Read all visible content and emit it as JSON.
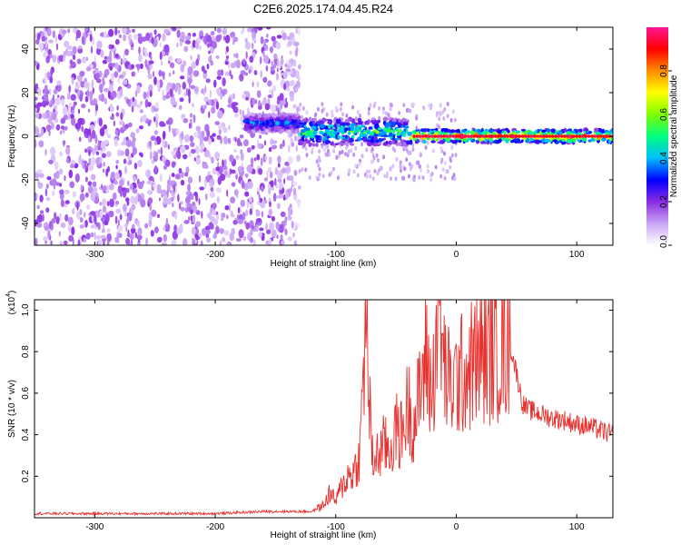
{
  "chart_data": [
    {
      "type": "heatmap",
      "title": "C2E6.2025.174.04.45.R24",
      "xlabel": "Height of straight line (km)",
      "ylabel": "Frequency (Hz)",
      "xlim": [
        -350,
        130
      ],
      "ylim": [
        -50,
        50
      ],
      "xticks": [
        -300,
        -200,
        -100,
        0,
        100
      ],
      "yticks": [
        -40,
        -20,
        0,
        20,
        40
      ],
      "grid": false,
      "colorbar": {
        "label": "Normalized spectral amplitude",
        "range": [
          0.0,
          1.0
        ],
        "ticks": [
          0.0,
          0.2,
          0.4,
          0.6,
          0.8
        ],
        "colors": [
          "#ffffff",
          "#c9a4f5",
          "#8a2be2",
          "#0000ff",
          "#00bfff",
          "#00ff7f",
          "#7fff00",
          "#ffff00",
          "#ff8c00",
          "#ff0000",
          "#ff1493"
        ]
      },
      "regions": [
        {
          "name": "noise",
          "x": [
            -350,
            -130
          ],
          "freq_range": [
            -50,
            50
          ],
          "amplitude": 0.15
        },
        {
          "name": "signal-onset",
          "x": [
            -175,
            -130
          ],
          "freq_center": 6,
          "amplitude": 0.4
        },
        {
          "name": "signal-broad",
          "x": [
            -130,
            -40
          ],
          "freq_center": 2,
          "freq_halfwidth": 6,
          "amplitude": 0.6
        },
        {
          "name": "signal-core",
          "x": [
            -40,
            130
          ],
          "freq_center": 0,
          "freq_halfwidth": 3,
          "amplitude": 0.95
        }
      ]
    },
    {
      "type": "line",
      "xlabel": "Height of straight line (km)",
      "ylabel": "SNR (10 * v/v)",
      "y_multiplier": "(x10^4)",
      "y_multiplier_base": "(x10",
      "y_multiplier_exp": "4",
      "xlim": [
        -350,
        130
      ],
      "ylim": [
        0.0,
        1.05
      ],
      "xticks": [
        -300,
        -200,
        -100,
        0,
        100
      ],
      "yticks": [
        0.2,
        0.4,
        0.6,
        0.8,
        1.0
      ],
      "grid": false,
      "series": [
        {
          "color": "#e8302d",
          "x": [
            -350,
            -300,
            -250,
            -200,
            -160,
            -140,
            -120,
            -110,
            -105,
            -100,
            -95,
            -90,
            -85,
            -80,
            -75,
            -70,
            -65,
            -60,
            -55,
            -50,
            -45,
            -40,
            -35,
            -30,
            -25,
            -20,
            -15,
            -10,
            -5,
            0,
            10,
            20,
            30,
            40,
            45,
            50,
            55,
            60,
            70,
            80,
            90,
            100,
            110,
            120,
            130
          ],
          "y": [
            0.02,
            0.02,
            0.02,
            0.02,
            0.03,
            0.03,
            0.03,
            0.06,
            0.12,
            0.08,
            0.15,
            0.2,
            0.22,
            0.3,
            0.97,
            0.28,
            0.3,
            0.35,
            0.32,
            0.42,
            0.4,
            0.55,
            0.45,
            0.6,
            0.78,
            0.58,
            1.03,
            0.72,
            0.62,
            0.66,
            0.72,
            0.78,
            0.8,
            0.83,
            0.82,
            0.7,
            0.55,
            0.52,
            0.5,
            0.48,
            0.47,
            0.45,
            0.44,
            0.42,
            0.4
          ]
        }
      ]
    }
  ]
}
